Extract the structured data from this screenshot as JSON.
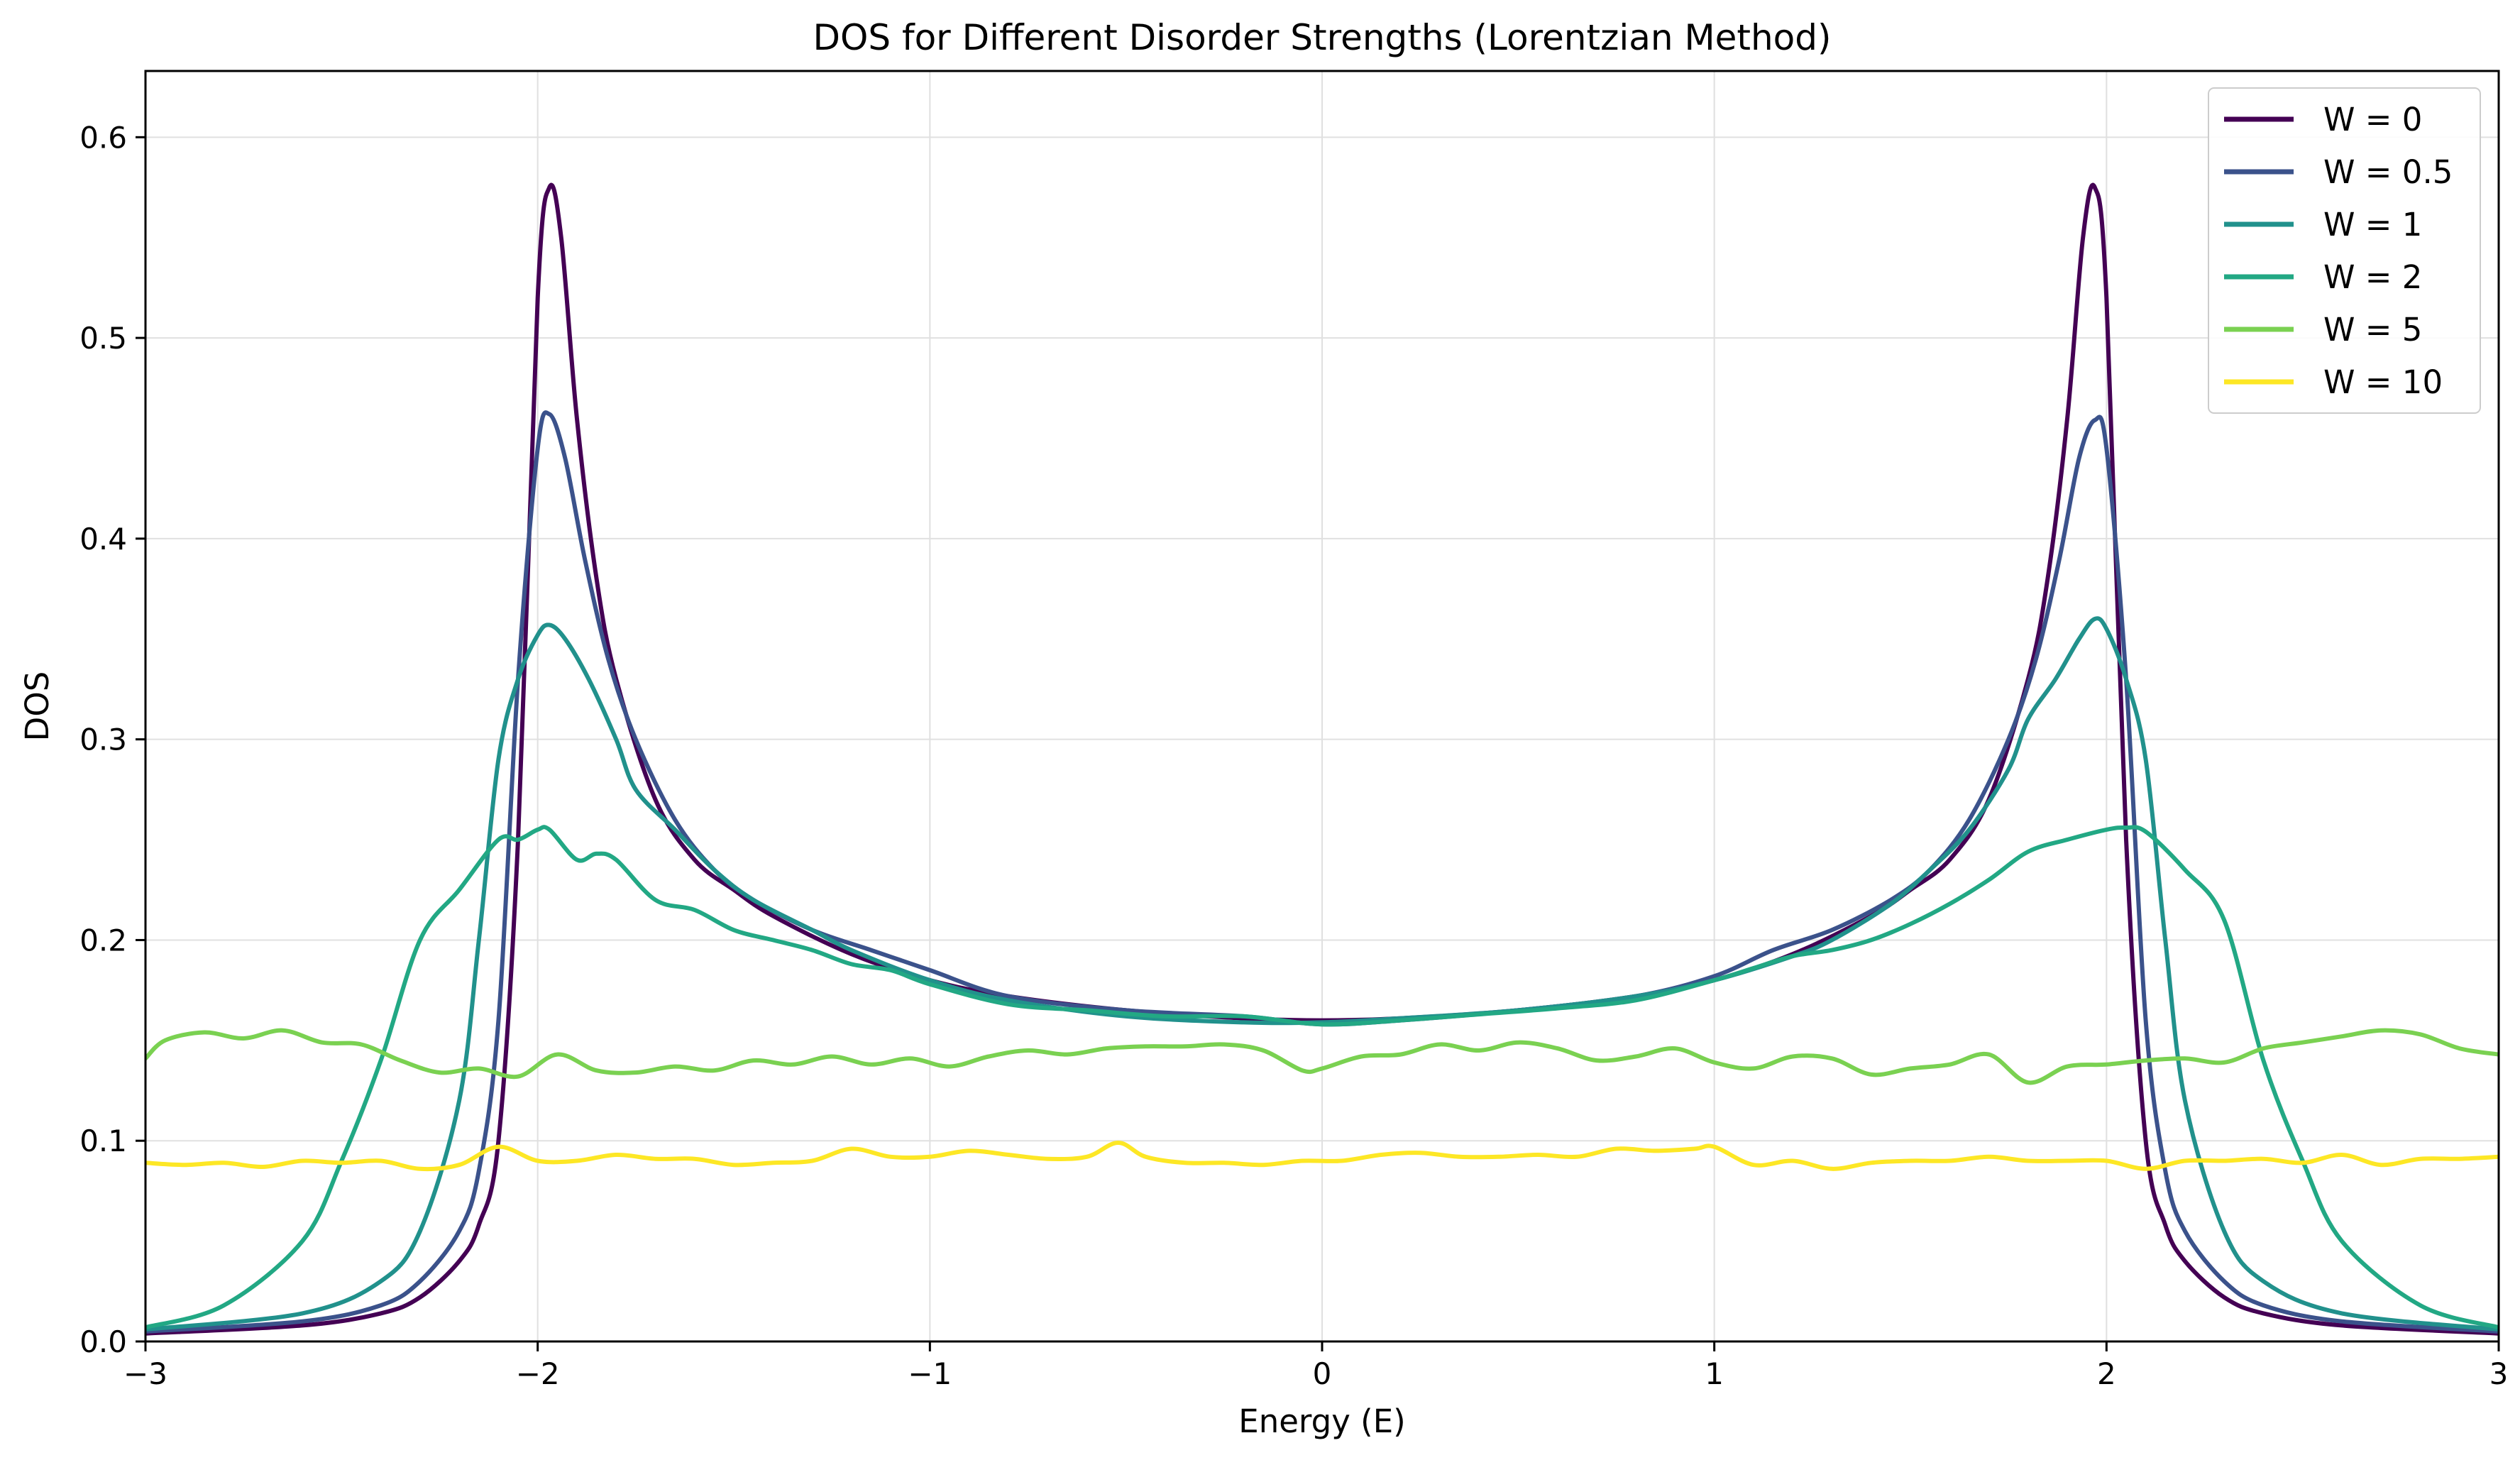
{
  "chart_data": {
    "type": "line",
    "title": "DOS for Different Disorder Strengths (Lorentzian Method)",
    "xlabel": "Energy (E)",
    "ylabel": "DOS",
    "xlim": [
      -3,
      3
    ],
    "ylim": [
      0,
      0.633
    ],
    "xticks": [
      -3,
      -2,
      -1,
      0,
      1,
      2,
      3
    ],
    "xtick_labels": [
      "−3",
      "−2",
      "−1",
      "0",
      "1",
      "2",
      "3"
    ],
    "yticks": [
      0.0,
      0.1,
      0.2,
      0.3,
      0.4,
      0.5,
      0.6
    ],
    "ytick_labels": [
      "0.0",
      "0.1",
      "0.2",
      "0.3",
      "0.4",
      "0.5",
      "0.6"
    ],
    "grid": true,
    "legend_position": "top-right",
    "series": [
      {
        "name": "W = 0",
        "color": "#440154",
        "x": [
          -3.0,
          -2.6,
          -2.4,
          -2.3,
          -2.2,
          -2.15,
          -2.1,
          -2.05,
          -2.0,
          -1.97,
          -1.94,
          -1.9,
          -1.85,
          -1.8,
          -1.7,
          -1.6,
          -1.5,
          -1.4,
          -1.2,
          -1.0,
          -0.8,
          -0.5,
          -0.2,
          0.0,
          0.2,
          0.5,
          0.8,
          1.0,
          1.2,
          1.4,
          1.5,
          1.6,
          1.7,
          1.8,
          1.85,
          1.9,
          1.94,
          1.97,
          2.0,
          2.05,
          2.1,
          2.15,
          2.2,
          2.3,
          2.4,
          2.6,
          3.0
        ],
        "y": [
          0.004,
          0.008,
          0.014,
          0.022,
          0.04,
          0.058,
          0.1,
          0.25,
          0.52,
          0.575,
          0.55,
          0.46,
          0.38,
          0.33,
          0.27,
          0.24,
          0.225,
          0.212,
          0.193,
          0.18,
          0.172,
          0.165,
          0.161,
          0.16,
          0.161,
          0.165,
          0.172,
          0.18,
          0.193,
          0.212,
          0.225,
          0.24,
          0.27,
          0.33,
          0.38,
          0.46,
          0.55,
          0.575,
          0.52,
          0.25,
          0.1,
          0.058,
          0.04,
          0.022,
          0.014,
          0.008,
          0.004
        ]
      },
      {
        "name": "W = 0.5",
        "color": "#3b528b",
        "x": [
          -3.0,
          -2.6,
          -2.4,
          -2.3,
          -2.2,
          -2.15,
          -2.1,
          -2.05,
          -2.0,
          -1.97,
          -1.93,
          -1.88,
          -1.82,
          -1.75,
          -1.65,
          -1.55,
          -1.45,
          -1.3,
          -1.15,
          -1.0,
          -0.8,
          -0.5,
          -0.2,
          0.0,
          0.2,
          0.5,
          0.8,
          1.0,
          1.15,
          1.3,
          1.45,
          1.55,
          1.65,
          1.75,
          1.82,
          1.88,
          1.93,
          1.97,
          2.0,
          2.05,
          2.1,
          2.15,
          2.2,
          2.3,
          2.4,
          2.6,
          3.0
        ],
        "y": [
          0.005,
          0.01,
          0.018,
          0.03,
          0.055,
          0.085,
          0.16,
          0.33,
          0.445,
          0.462,
          0.44,
          0.39,
          0.34,
          0.3,
          0.26,
          0.235,
          0.22,
          0.205,
          0.195,
          0.185,
          0.172,
          0.165,
          0.162,
          0.158,
          0.16,
          0.165,
          0.172,
          0.182,
          0.195,
          0.205,
          0.22,
          0.235,
          0.26,
          0.3,
          0.34,
          0.39,
          0.44,
          0.459,
          0.445,
          0.33,
          0.16,
          0.085,
          0.055,
          0.03,
          0.018,
          0.01,
          0.005
        ]
      },
      {
        "name": "W = 1",
        "color": "#21918c",
        "x": [
          -3.0,
          -2.6,
          -2.4,
          -2.3,
          -2.2,
          -2.15,
          -2.1,
          -2.05,
          -2.0,
          -1.97,
          -1.93,
          -1.87,
          -1.8,
          -1.75,
          -1.65,
          -1.55,
          -1.45,
          -1.3,
          -1.2,
          -1.0,
          -0.8,
          -0.5,
          -0.2,
          0.0,
          0.2,
          0.5,
          0.8,
          1.0,
          1.2,
          1.3,
          1.45,
          1.55,
          1.65,
          1.75,
          1.8,
          1.87,
          1.93,
          1.97,
          2.0,
          2.05,
          2.1,
          2.15,
          2.2,
          2.3,
          2.4,
          2.6,
          3.0
        ],
        "y": [
          0.006,
          0.014,
          0.03,
          0.055,
          0.12,
          0.2,
          0.29,
          0.33,
          0.352,
          0.357,
          0.35,
          0.33,
          0.3,
          0.275,
          0.255,
          0.235,
          0.22,
          0.205,
          0.195,
          0.18,
          0.17,
          0.162,
          0.159,
          0.159,
          0.161,
          0.165,
          0.172,
          0.18,
          0.192,
          0.2,
          0.218,
          0.235,
          0.255,
          0.285,
          0.31,
          0.33,
          0.35,
          0.36,
          0.355,
          0.33,
          0.29,
          0.2,
          0.12,
          0.055,
          0.03,
          0.014,
          0.006
        ]
      },
      {
        "name": "W = 2",
        "color": "#22a884",
        "x": [
          -3.0,
          -2.8,
          -2.6,
          -2.5,
          -2.4,
          -2.3,
          -2.2,
          -2.1,
          -2.05,
          -2.0,
          -1.97,
          -1.9,
          -1.85,
          -1.8,
          -1.7,
          -1.6,
          -1.5,
          -1.4,
          -1.3,
          -1.2,
          -1.1,
          -1.0,
          -0.8,
          -0.6,
          -0.4,
          -0.2,
          0.0,
          0.2,
          0.4,
          0.6,
          0.8,
          1.0,
          1.1,
          1.2,
          1.3,
          1.4,
          1.5,
          1.6,
          1.7,
          1.8,
          1.9,
          2.0,
          2.05,
          2.1,
          2.2,
          2.3,
          2.4,
          2.5,
          2.6,
          2.8,
          3.0
        ],
        "y": [
          0.007,
          0.018,
          0.05,
          0.09,
          0.14,
          0.2,
          0.225,
          0.25,
          0.25,
          0.255,
          0.255,
          0.24,
          0.243,
          0.24,
          0.22,
          0.215,
          0.205,
          0.2,
          0.195,
          0.188,
          0.185,
          0.178,
          0.168,
          0.165,
          0.162,
          0.162,
          0.158,
          0.16,
          0.163,
          0.166,
          0.17,
          0.18,
          0.186,
          0.192,
          0.195,
          0.2,
          0.208,
          0.218,
          0.23,
          0.244,
          0.25,
          0.255,
          0.256,
          0.254,
          0.235,
          0.21,
          0.14,
          0.09,
          0.05,
          0.018,
          0.007
        ]
      },
      {
        "name": "W = 5",
        "color": "#7ad151",
        "x": [
          -3.0,
          -2.95,
          -2.85,
          -2.75,
          -2.65,
          -2.55,
          -2.45,
          -2.35,
          -2.25,
          -2.15,
          -2.05,
          -1.95,
          -1.85,
          -1.75,
          -1.65,
          -1.55,
          -1.45,
          -1.35,
          -1.25,
          -1.15,
          -1.05,
          -0.95,
          -0.85,
          -0.75,
          -0.65,
          -0.55,
          -0.45,
          -0.35,
          -0.25,
          -0.15,
          -0.05,
          0.0,
          0.1,
          0.2,
          0.3,
          0.4,
          0.5,
          0.6,
          0.7,
          0.8,
          0.9,
          1.0,
          1.1,
          1.2,
          1.3,
          1.4,
          1.5,
          1.6,
          1.7,
          1.8,
          1.9,
          2.0,
          2.1,
          2.2,
          2.3,
          2.4,
          2.5,
          2.6,
          2.7,
          2.8,
          2.9,
          3.0
        ],
        "y": [
          0.141,
          0.15,
          0.154,
          0.151,
          0.155,
          0.149,
          0.148,
          0.14,
          0.134,
          0.136,
          0.132,
          0.143,
          0.135,
          0.134,
          0.137,
          0.135,
          0.14,
          0.138,
          0.142,
          0.138,
          0.141,
          0.137,
          0.142,
          0.145,
          0.143,
          0.146,
          0.147,
          0.147,
          0.148,
          0.145,
          0.135,
          0.136,
          0.142,
          0.143,
          0.148,
          0.145,
          0.149,
          0.146,
          0.14,
          0.142,
          0.146,
          0.139,
          0.136,
          0.142,
          0.141,
          0.133,
          0.136,
          0.138,
          0.143,
          0.129,
          0.137,
          0.138,
          0.14,
          0.141,
          0.139,
          0.146,
          0.149,
          0.152,
          0.155,
          0.153,
          0.146,
          0.143
        ]
      },
      {
        "name": "W = 10",
        "color": "#fde725",
        "x": [
          -3.0,
          -2.9,
          -2.8,
          -2.7,
          -2.6,
          -2.5,
          -2.4,
          -2.3,
          -2.2,
          -2.1,
          -2.0,
          -1.9,
          -1.8,
          -1.7,
          -1.6,
          -1.5,
          -1.4,
          -1.3,
          -1.2,
          -1.1,
          -1.0,
          -0.9,
          -0.8,
          -0.7,
          -0.6,
          -0.52,
          -0.45,
          -0.35,
          -0.25,
          -0.15,
          -0.05,
          0.05,
          0.15,
          0.25,
          0.35,
          0.45,
          0.55,
          0.65,
          0.75,
          0.85,
          0.95,
          1.0,
          1.1,
          1.2,
          1.3,
          1.4,
          1.5,
          1.6,
          1.7,
          1.8,
          1.9,
          2.0,
          2.1,
          2.2,
          2.3,
          2.4,
          2.5,
          2.6,
          2.7,
          2.8,
          2.9,
          3.0
        ],
        "y": [
          0.089,
          0.088,
          0.089,
          0.087,
          0.09,
          0.089,
          0.09,
          0.086,
          0.088,
          0.097,
          0.09,
          0.09,
          0.093,
          0.091,
          0.091,
          0.088,
          0.089,
          0.09,
          0.096,
          0.092,
          0.092,
          0.095,
          0.093,
          0.091,
          0.092,
          0.099,
          0.092,
          0.089,
          0.089,
          0.088,
          0.09,
          0.09,
          0.093,
          0.094,
          0.092,
          0.092,
          0.093,
          0.092,
          0.096,
          0.095,
          0.096,
          0.097,
          0.088,
          0.09,
          0.086,
          0.089,
          0.09,
          0.09,
          0.092,
          0.09,
          0.09,
          0.09,
          0.086,
          0.09,
          0.09,
          0.091,
          0.089,
          0.093,
          0.088,
          0.091,
          0.091,
          0.092
        ]
      }
    ]
  }
}
